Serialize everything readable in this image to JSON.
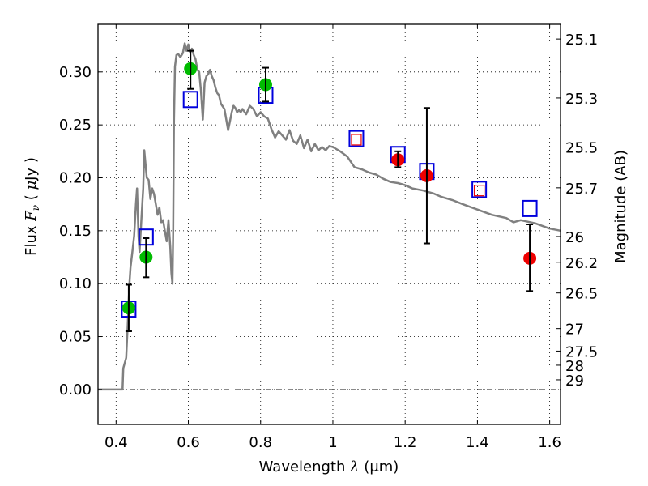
{
  "chart_data": {
    "type": "scatter",
    "title": "",
    "xlabel": "Wavelength  λ (μm)",
    "xlabel_parts": {
      "text": "Wavelength  ",
      "symbol": "λ",
      "unit": " (μm)"
    },
    "ylabel": "Flux  F_ν  ( μJy )",
    "ylabel_parts": {
      "text": "Flux  ",
      "symbol": "F",
      "subscript": "ν",
      "unit_open": "  ( ",
      "unit_mu": "μ",
      "unit_rest": "Jy )"
    },
    "y2label": "Magnitude (AB)",
    "xlim": [
      0.35,
      1.63
    ],
    "ylim": [
      -0.033,
      0.345
    ],
    "grid": true,
    "x_ticks": [
      0.4,
      0.6,
      0.8,
      1.0,
      1.2,
      1.4,
      1.6
    ],
    "x_tick_labels": [
      "0.4",
      "0.6",
      "0.8",
      "1",
      "1.2",
      "1.4",
      "1.6"
    ],
    "y_ticks": [
      0.0,
      0.05,
      0.1,
      0.15,
      0.2,
      0.25,
      0.3
    ],
    "y_tick_labels": [
      "0.00",
      "0.05",
      "0.10",
      "0.15",
      "0.20",
      "0.25",
      "0.30"
    ],
    "y2_ticks": [
      {
        "mag": 25.1,
        "label": "25.1"
      },
      {
        "mag": 25.3,
        "label": "25.3"
      },
      {
        "mag": 25.5,
        "label": "25.5"
      },
      {
        "mag": 25.7,
        "label": "25.7"
      },
      {
        "mag": 26.0,
        "label": "26"
      },
      {
        "mag": 26.2,
        "label": "26.2"
      },
      {
        "mag": 26.5,
        "label": "26.5"
      },
      {
        "mag": 27.0,
        "label": "27"
      },
      {
        "mag": 27.5,
        "label": "27.5"
      },
      {
        "mag": 28.0,
        "label": "28"
      },
      {
        "mag": 29.0,
        "label": "29"
      }
    ],
    "zero_line": 0.0,
    "colors": {
      "model": "#808080",
      "optical_points": "#00bb00",
      "nir_points": "#ee0000",
      "model_photometry": "#0000dd",
      "model_photometry_inner": "#ee0000",
      "errorbar": "#000000"
    },
    "series": [
      {
        "name": "model spectrum",
        "kind": "line",
        "x": [
          0.35,
          0.418,
          0.42,
          0.428,
          0.432,
          0.437,
          0.44,
          0.445,
          0.45,
          0.455,
          0.458,
          0.462,
          0.465,
          0.47,
          0.475,
          0.478,
          0.481,
          0.485,
          0.49,
          0.495,
          0.5,
          0.505,
          0.51,
          0.515,
          0.52,
          0.525,
          0.53,
          0.535,
          0.54,
          0.545,
          0.55,
          0.553,
          0.556,
          0.558,
          0.56,
          0.563,
          0.567,
          0.572,
          0.578,
          0.585,
          0.59,
          0.595,
          0.6,
          0.605,
          0.61,
          0.615,
          0.62,
          0.625,
          0.63,
          0.635,
          0.64,
          0.645,
          0.65,
          0.655,
          0.66,
          0.665,
          0.67,
          0.675,
          0.68,
          0.685,
          0.69,
          0.7,
          0.71,
          0.715,
          0.72,
          0.725,
          0.73,
          0.735,
          0.74,
          0.745,
          0.75,
          0.76,
          0.77,
          0.78,
          0.79,
          0.8,
          0.81,
          0.82,
          0.83,
          0.84,
          0.85,
          0.86,
          0.87,
          0.88,
          0.89,
          0.9,
          0.91,
          0.92,
          0.93,
          0.94,
          0.95,
          0.96,
          0.97,
          0.98,
          0.99,
          1.0,
          1.02,
          1.04,
          1.06,
          1.08,
          1.1,
          1.12,
          1.14,
          1.16,
          1.18,
          1.2,
          1.22,
          1.25,
          1.28,
          1.3,
          1.33,
          1.36,
          1.4,
          1.44,
          1.48,
          1.5,
          1.52,
          1.56,
          1.6,
          1.63
        ],
        "y": [
          0.0,
          0.0,
          0.02,
          0.03,
          0.06,
          0.1,
          0.115,
          0.13,
          0.145,
          0.175,
          0.19,
          0.145,
          0.13,
          0.16,
          0.19,
          0.226,
          0.215,
          0.2,
          0.198,
          0.18,
          0.19,
          0.185,
          0.175,
          0.165,
          0.172,
          0.158,
          0.16,
          0.15,
          0.14,
          0.16,
          0.135,
          0.11,
          0.1,
          0.15,
          0.25,
          0.305,
          0.316,
          0.317,
          0.314,
          0.318,
          0.327,
          0.32,
          0.326,
          0.318,
          0.322,
          0.316,
          0.312,
          0.302,
          0.3,
          0.282,
          0.255,
          0.29,
          0.296,
          0.298,
          0.302,
          0.296,
          0.292,
          0.285,
          0.28,
          0.278,
          0.27,
          0.265,
          0.245,
          0.253,
          0.262,
          0.268,
          0.266,
          0.262,
          0.264,
          0.262,
          0.265,
          0.26,
          0.268,
          0.265,
          0.258,
          0.262,
          0.258,
          0.256,
          0.246,
          0.238,
          0.244,
          0.24,
          0.236,
          0.245,
          0.235,
          0.232,
          0.24,
          0.228,
          0.236,
          0.225,
          0.232,
          0.226,
          0.229,
          0.226,
          0.23,
          0.229,
          0.225,
          0.22,
          0.21,
          0.208,
          0.205,
          0.203,
          0.199,
          0.196,
          0.195,
          0.193,
          0.19,
          0.188,
          0.185,
          0.182,
          0.179,
          0.175,
          0.17,
          0.165,
          0.162,
          0.158,
          0.16,
          0.157,
          0.152,
          0.15
        ]
      },
      {
        "name": "observed optical (green)",
        "kind": "points_errorbars",
        "points": [
          {
            "x": 0.435,
            "y": 0.077,
            "yerr_low": 0.055,
            "yerr_high": 0.099
          },
          {
            "x": 0.483,
            "y": 0.125,
            "yerr_low": 0.106,
            "yerr_high": 0.143
          },
          {
            "x": 0.606,
            "y": 0.303,
            "yerr_low": 0.284,
            "yerr_high": 0.32
          },
          {
            "x": 0.814,
            "y": 0.288,
            "yerr_low": 0.272,
            "yerr_high": 0.304
          }
        ]
      },
      {
        "name": "observed near-IR (red)",
        "kind": "points_errorbars",
        "points": [
          {
            "x": 1.18,
            "y": 0.217,
            "yerr_low": 0.21,
            "yerr_high": 0.225
          },
          {
            "x": 1.26,
            "y": 0.202,
            "yerr_low": 0.138,
            "yerr_high": 0.266
          },
          {
            "x": 1.545,
            "y": 0.124,
            "yerr_low": 0.093,
            "yerr_high": 0.156
          }
        ]
      },
      {
        "name": "model photometry (blue squares)",
        "kind": "open_squares",
        "points": [
          {
            "x": 0.435,
            "y": 0.076
          },
          {
            "x": 0.483,
            "y": 0.144
          },
          {
            "x": 0.606,
            "y": 0.274
          },
          {
            "x": 0.814,
            "y": 0.278
          },
          {
            "x": 1.065,
            "y": 0.237
          },
          {
            "x": 1.18,
            "y": 0.222
          },
          {
            "x": 1.26,
            "y": 0.206
          },
          {
            "x": 1.405,
            "y": 0.189
          },
          {
            "x": 1.545,
            "y": 0.171
          }
        ]
      },
      {
        "name": "model photometry inner (red squares)",
        "kind": "open_squares_small",
        "points": [
          {
            "x": 1.065,
            "y": 0.236
          },
          {
            "x": 1.405,
            "y": 0.188
          }
        ]
      }
    ]
  }
}
